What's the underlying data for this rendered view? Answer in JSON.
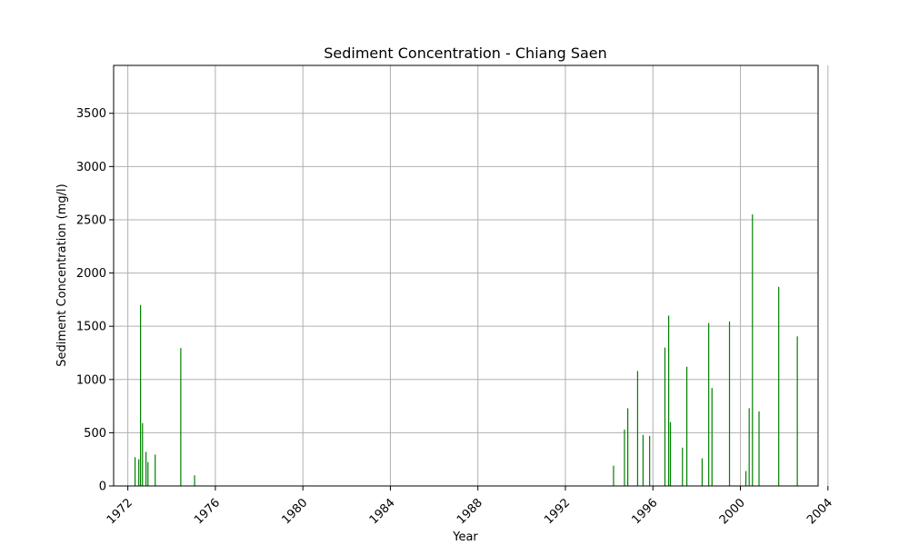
{
  "chart_data": {
    "type": "bar",
    "title": "Sediment Concentration - Chiang Saen",
    "xlabel": "Year",
    "ylabel": "Sediment Concentration (mg/l)",
    "xlim": [
      1971.35,
      2003.55
    ],
    "ylim": [
      0,
      3950
    ],
    "xticks": [
      1972,
      1976,
      1980,
      1984,
      1988,
      1992,
      1996,
      2000,
      2004
    ],
    "yticks": [
      0,
      500,
      1000,
      1500,
      2000,
      2500,
      3000,
      3500
    ],
    "grid": true,
    "bar_color": "#008000",
    "points": [
      {
        "x": 1972.33,
        "y": 270
      },
      {
        "x": 1972.5,
        "y": 250
      },
      {
        "x": 1972.58,
        "y": 1700
      },
      {
        "x": 1972.67,
        "y": 590
      },
      {
        "x": 1972.83,
        "y": 320
      },
      {
        "x": 1972.92,
        "y": 225
      },
      {
        "x": 1973.25,
        "y": 295
      },
      {
        "x": 1974.42,
        "y": 1295
      },
      {
        "x": 1975.05,
        "y": 100
      },
      {
        "x": 1994.2,
        "y": 190
      },
      {
        "x": 1994.7,
        "y": 530
      },
      {
        "x": 1994.85,
        "y": 730
      },
      {
        "x": 1995.3,
        "y": 1080
      },
      {
        "x": 1995.55,
        "y": 480
      },
      {
        "x": 1995.85,
        "y": 470
      },
      {
        "x": 1996.55,
        "y": 1300
      },
      {
        "x": 1996.72,
        "y": 1600
      },
      {
        "x": 1996.8,
        "y": 600
      },
      {
        "x": 1997.35,
        "y": 360
      },
      {
        "x": 1997.55,
        "y": 1120
      },
      {
        "x": 1998.25,
        "y": 260
      },
      {
        "x": 1998.55,
        "y": 1530
      },
      {
        "x": 1998.7,
        "y": 920
      },
      {
        "x": 1999.5,
        "y": 1545
      },
      {
        "x": 2000.25,
        "y": 140
      },
      {
        "x": 2000.4,
        "y": 730
      },
      {
        "x": 2000.55,
        "y": 2550
      },
      {
        "x": 2000.85,
        "y": 700
      },
      {
        "x": 2001.75,
        "y": 1870
      },
      {
        "x": 2002.6,
        "y": 1405
      }
    ]
  }
}
